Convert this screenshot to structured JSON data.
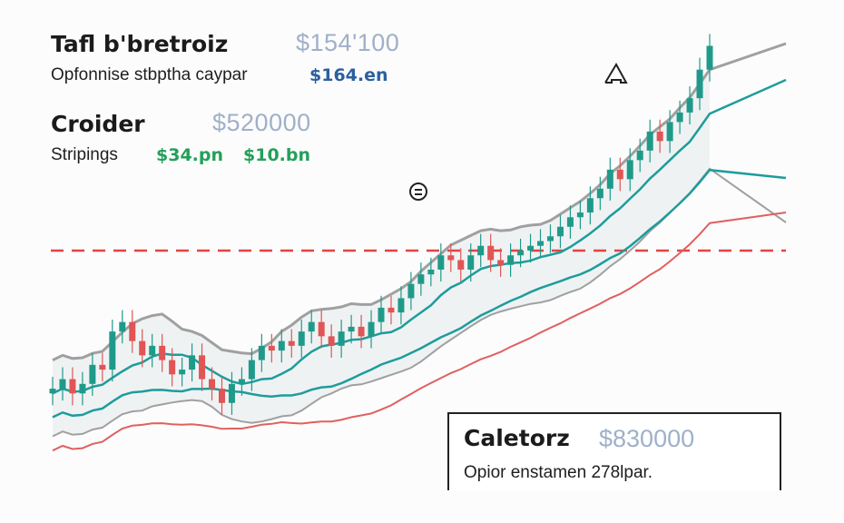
{
  "panel1": {
    "title": "Tafl b'bretroiz",
    "value": "$154'100",
    "label": "Opfonnise stbptha caypar",
    "badge": "$164.en"
  },
  "panel2": {
    "title": "Croider",
    "value": "$520000",
    "label": "Stripings",
    "badge_a": "$34.pn",
    "badge_b": "$10.bn"
  },
  "panel3": {
    "title": "Caletorz",
    "value": "$830000",
    "note": "Opior enstamen 278lpar."
  },
  "colors": {
    "up": "#1f9a8a",
    "down": "#e05555",
    "band": "#a0a0a0",
    "teal_line": "#1e9c9c",
    "red_line": "#e06060",
    "reference": "#e04444"
  },
  "icons": {
    "arrow": "up-arrow-icon",
    "marker": "document-icon"
  },
  "chart_data": {
    "type": "candlestick",
    "series": [
      {
        "name": "price",
        "values": [
          38,
          40,
          37,
          39,
          43,
          42,
          50,
          52,
          48,
          45,
          47,
          44,
          41,
          42,
          45,
          40,
          38,
          35,
          39,
          40,
          44,
          47,
          46,
          48,
          47,
          50,
          52,
          49,
          47,
          50,
          51,
          49,
          52,
          55,
          54,
          57,
          60,
          62,
          63,
          66,
          65,
          63,
          66,
          68,
          65,
          64,
          66,
          67,
          68,
          69,
          70,
          72,
          74,
          75,
          78,
          80,
          84,
          82,
          86,
          88,
          92,
          90,
          94,
          96,
          99,
          105,
          110
        ]
      }
    ]
  }
}
